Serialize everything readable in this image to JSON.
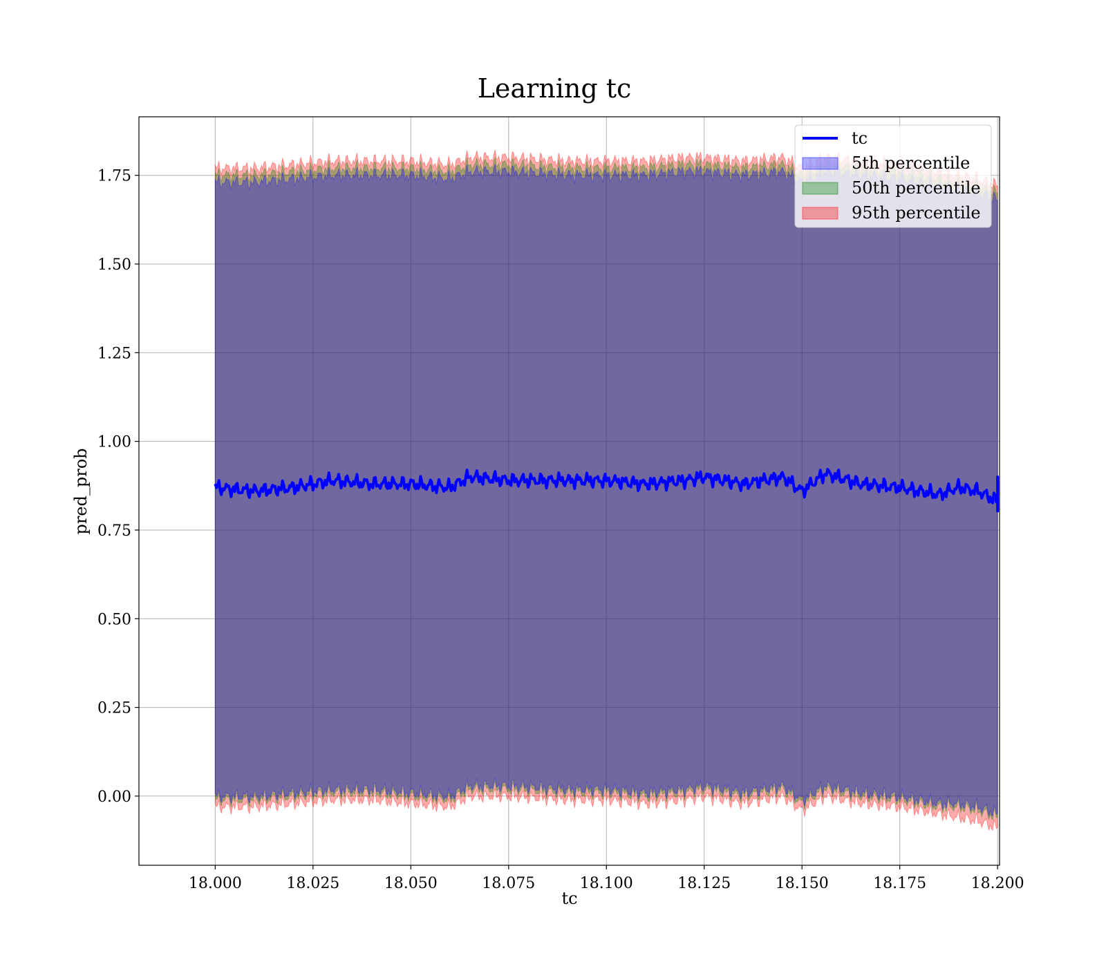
{
  "chart_data": {
    "type": "area",
    "title": "Learning tc",
    "xlabel": "tc",
    "ylabel": "pred_prob",
    "xlim": [
      17.9805,
      18.2005
    ],
    "ylim": [
      -0.195,
      1.915
    ],
    "xticks": [
      "18.000",
      "18.025",
      "18.050",
      "18.075",
      "18.100",
      "18.125",
      "18.150",
      "18.175",
      "18.200"
    ],
    "yticks": [
      "0.00",
      "0.25",
      "0.50",
      "0.75",
      "1.00",
      "1.25",
      "1.50",
      "1.75"
    ],
    "grid": true,
    "legend_position": "top-right",
    "x_range": [
      18.0,
      18.2
    ],
    "series": [
      {
        "name": "tc",
        "kind": "line",
        "color": "#0000ff",
        "x": [
          18.0,
          18.01,
          18.02,
          18.03,
          18.04,
          18.05,
          18.06,
          18.065,
          18.075,
          18.09,
          18.1,
          18.11,
          18.12,
          18.125,
          18.135,
          18.145,
          18.15,
          18.156,
          18.165,
          18.175,
          18.185,
          18.19,
          18.195,
          18.2
        ],
        "values": [
          0.87,
          0.86,
          0.87,
          0.89,
          0.88,
          0.88,
          0.87,
          0.9,
          0.89,
          0.89,
          0.89,
          0.88,
          0.89,
          0.9,
          0.88,
          0.9,
          0.86,
          0.91,
          0.88,
          0.87,
          0.85,
          0.87,
          0.86,
          0.83
        ]
      },
      {
        "name": "5th percentile",
        "kind": "band",
        "color": "#0000ff",
        "upper": [
          1.73,
          1.73,
          1.74,
          1.75,
          1.75,
          1.75,
          1.74,
          1.76,
          1.76,
          1.75,
          1.75,
          1.75,
          1.76,
          1.76,
          1.75,
          1.76,
          1.73,
          1.76,
          1.75,
          1.74,
          1.72,
          1.71,
          1.7,
          1.68
        ],
        "lower": [
          0.0,
          0.0,
          0.01,
          0.02,
          0.02,
          0.01,
          0.0,
          0.03,
          0.03,
          0.02,
          0.02,
          0.01,
          0.02,
          0.03,
          0.01,
          0.03,
          -0.01,
          0.03,
          0.01,
          0.0,
          -0.02,
          -0.02,
          -0.03,
          -0.05
        ]
      },
      {
        "name": "50th percentile",
        "kind": "band",
        "color": "#008000",
        "upper": [
          1.75,
          1.75,
          1.76,
          1.77,
          1.77,
          1.77,
          1.76,
          1.78,
          1.78,
          1.77,
          1.77,
          1.77,
          1.78,
          1.78,
          1.77,
          1.78,
          1.75,
          1.78,
          1.77,
          1.76,
          1.74,
          1.73,
          1.72,
          1.7
        ],
        "lower": [
          -0.01,
          -0.01,
          0.0,
          0.01,
          0.01,
          0.0,
          -0.01,
          0.02,
          0.02,
          0.01,
          0.01,
          0.0,
          0.01,
          0.02,
          0.0,
          0.02,
          -0.02,
          0.02,
          0.0,
          -0.01,
          -0.03,
          -0.03,
          -0.04,
          -0.06
        ]
      },
      {
        "name": "95th percentile",
        "kind": "band",
        "color": "#ff0000",
        "upper": [
          1.77,
          1.77,
          1.78,
          1.79,
          1.79,
          1.79,
          1.78,
          1.8,
          1.8,
          1.79,
          1.79,
          1.79,
          1.8,
          1.8,
          1.79,
          1.8,
          1.77,
          1.8,
          1.79,
          1.78,
          1.76,
          1.75,
          1.74,
          1.72
        ],
        "lower": [
          -0.03,
          -0.03,
          -0.02,
          -0.01,
          -0.01,
          -0.02,
          -0.03,
          0.0,
          0.0,
          -0.01,
          -0.01,
          -0.02,
          -0.01,
          0.0,
          -0.02,
          0.0,
          -0.04,
          0.0,
          -0.02,
          -0.03,
          -0.05,
          -0.06,
          -0.07,
          -0.09
        ]
      }
    ]
  }
}
